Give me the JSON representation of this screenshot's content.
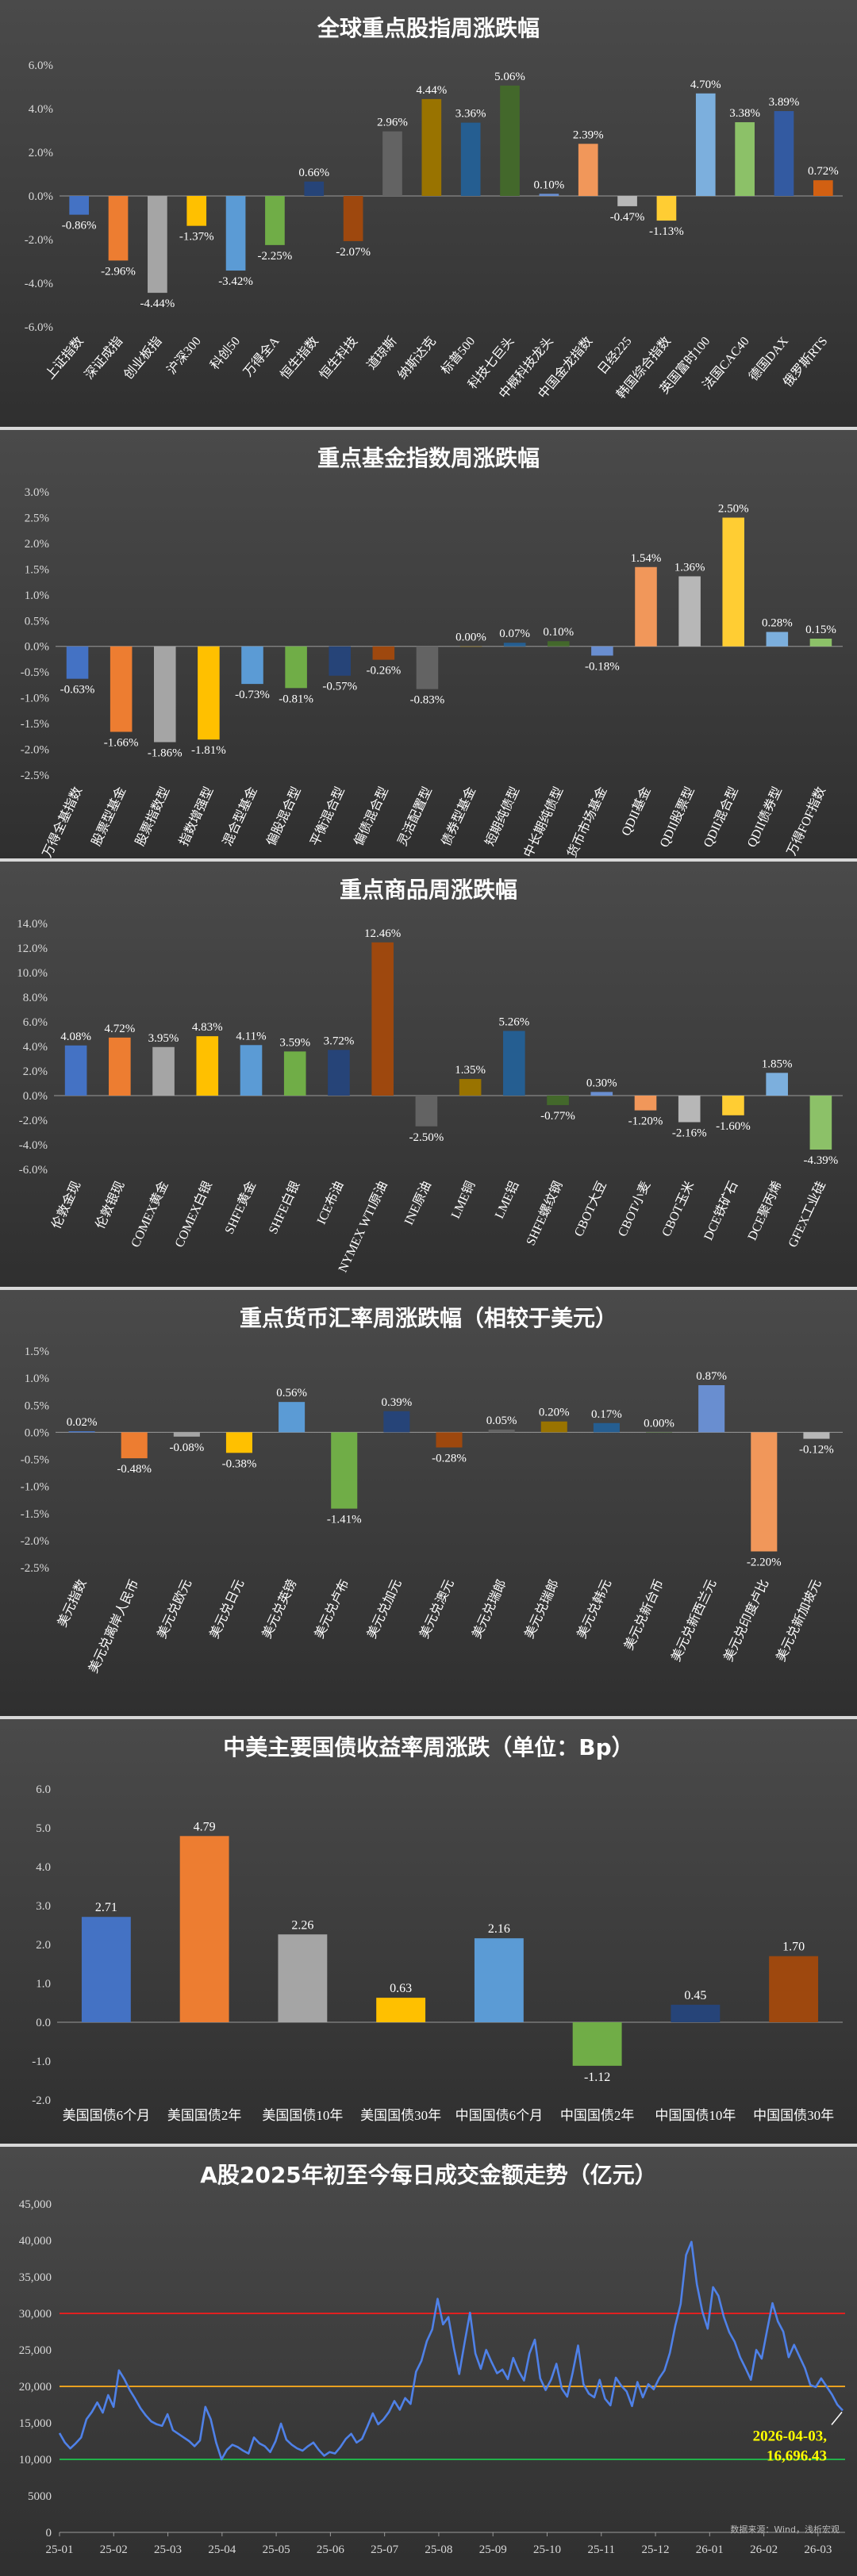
{
  "chart_data": [
    {
      "type": "bar",
      "title": "全球重点股指周涨跌幅",
      "categories": [
        "上证指数",
        "深证成指",
        "创业板指",
        "沪深300",
        "科创50",
        "万得全A",
        "恒生指数",
        "恒生科技",
        "道琼斯",
        "纳斯达克",
        "标普500",
        "科技七巨头",
        "中概科技龙头",
        "中国金龙指数",
        "日经225",
        "韩国综合指数",
        "英国富时100",
        "法国CAC40",
        "德国DAX",
        "俄罗斯RTS"
      ],
      "values": [
        -0.86,
        -2.96,
        -4.44,
        -1.37,
        -3.42,
        -2.25,
        0.66,
        -2.07,
        2.96,
        4.44,
        3.36,
        5.06,
        0.1,
        2.39,
        -0.47,
        -1.13,
        4.7,
        3.38,
        3.89,
        0.72
      ],
      "labels": [
        "-0.86%",
        "-2.96%",
        "-4.44%",
        "-1.37%",
        "-3.42%",
        "-2.25%",
        "0.66%",
        "-2.07%",
        "2.96%",
        "4.44%",
        "3.36%",
        "5.06%",
        "0.10%",
        "2.39%",
        "-0.47%",
        "-1.13%",
        "4.70%",
        "3.38%",
        "3.89%",
        "0.72%"
      ],
      "colors": [
        "#4472C4",
        "#ED7D31",
        "#A5A5A5",
        "#FFC000",
        "#5B9BD5",
        "#70AD47",
        "#264478",
        "#9E480E",
        "#636363",
        "#997300",
        "#255E91",
        "#43682B",
        "#698ED0",
        "#F1975A",
        "#B7B7B7",
        "#FFCD33",
        "#7CAFDD",
        "#8CC168",
        "#335AA1",
        "#D26012"
      ],
      "yticks": [
        "6.0%",
        "4.0%",
        "2.0%",
        "0.0%",
        "-2.0%",
        "-4.0%",
        "-6.0%"
      ],
      "ylim": [
        -6,
        6
      ]
    },
    {
      "type": "bar",
      "title": "重点基金指数周涨跌幅",
      "categories": [
        "万得全基指数",
        "股票型基金",
        "股票指数型",
        "指数增强型",
        "混合型基金",
        "偏股混合型",
        "平衡混合型",
        "偏债混合型",
        "灵活配置型",
        "债券型基金",
        "短期纯债型",
        "中长期纯债型",
        "货币市场基金",
        "QDII基金",
        "QDII股票型",
        "QDII混合型",
        "QDII债券型",
        "万得FOF指数"
      ],
      "values": [
        -0.63,
        -1.66,
        -1.86,
        -1.81,
        -0.73,
        -0.81,
        -0.57,
        -0.26,
        -0.83,
        0.0,
        0.07,
        0.1,
        -0.18,
        1.54,
        1.36,
        2.5,
        0.28,
        0.15
      ],
      "labels": [
        "-0.63%",
        "-1.66%",
        "-1.86%",
        "-1.81%",
        "-0.73%",
        "-0.81%",
        "-0.57%",
        "-0.26%",
        "-0.83%",
        "0.00%",
        "0.07%",
        "0.10%",
        "-0.18%",
        "1.54%",
        "1.36%",
        "2.50%",
        "0.28%",
        "0.15%"
      ],
      "colors": [
        "#4472C4",
        "#ED7D31",
        "#A5A5A5",
        "#FFC000",
        "#5B9BD5",
        "#70AD47",
        "#264478",
        "#9E480E",
        "#636363",
        "#997300",
        "#255E91",
        "#43682B",
        "#698ED0",
        "#F1975A",
        "#B7B7B7",
        "#FFCD33",
        "#7CAFDD",
        "#8CC168"
      ],
      "yticks": [
        "3.0%",
        "2.5%",
        "2.0%",
        "1.5%",
        "1.0%",
        "0.5%",
        "0.0%",
        "-0.5%",
        "-1.0%",
        "-1.5%",
        "-2.0%",
        "-2.5%"
      ],
      "ylim": [
        -2.5,
        3.0
      ]
    },
    {
      "type": "bar",
      "title": "重点商品周涨跌幅",
      "categories": [
        "伦敦金现",
        "伦敦银现",
        "COMEX黄金",
        "COMEX白银",
        "SHFE黄金",
        "SHFE白银",
        "ICE布油",
        "NYMEX WTI原油",
        "INE原油",
        "LME铜",
        "LME铝",
        "SHFE螺纹钢",
        "CBOT大豆",
        "CBOT小麦",
        "CBOT玉米",
        "DCE铁矿石",
        "DCE聚丙烯",
        "GFEX工业硅"
      ],
      "values": [
        4.08,
        4.72,
        3.95,
        4.83,
        4.11,
        3.59,
        3.72,
        12.46,
        -2.5,
        1.35,
        5.26,
        -0.77,
        0.3,
        -1.2,
        -2.16,
        -1.6,
        1.85,
        -4.39
      ],
      "labels": [
        "4.08%",
        "4.72%",
        "3.95%",
        "4.83%",
        "4.11%",
        "3.59%",
        "3.72%",
        "12.46%",
        "-2.50%",
        "1.35%",
        "5.26%",
        "-0.77%",
        "0.30%",
        "-1.20%",
        "-2.16%",
        "-1.60%",
        "1.85%",
        "-4.39%"
      ],
      "colors": [
        "#4472C4",
        "#ED7D31",
        "#A5A5A5",
        "#FFC000",
        "#5B9BD5",
        "#70AD47",
        "#264478",
        "#9E480E",
        "#636363",
        "#997300",
        "#255E91",
        "#43682B",
        "#698ED0",
        "#F1975A",
        "#B7B7B7",
        "#FFCD33",
        "#7CAFDD",
        "#8CC168"
      ],
      "yticks": [
        "14.0%",
        "12.0%",
        "10.0%",
        "8.0%",
        "6.0%",
        "4.0%",
        "2.0%",
        "0.0%",
        "-2.0%",
        "-4.0%",
        "-6.0%"
      ],
      "ylim": [
        -6,
        14
      ]
    },
    {
      "type": "bar",
      "title": "重点货币汇率周涨跌幅（相较于美元）",
      "categories": [
        "美元指数",
        "美元兑离岸人民币",
        "美元兑欧元",
        "美元兑日元",
        "美元兑英镑",
        "美元兑卢布",
        "美元兑加元",
        "美元兑澳元",
        "美元兑瑞郎",
        "美元兑瑞郎",
        "美元兑韩元",
        "美元兑新台币",
        "美元兑新西兰元",
        "美元兑印度卢比",
        "美元兑新加坡元"
      ],
      "values": [
        0.02,
        -0.48,
        -0.08,
        -0.38,
        0.56,
        -1.41,
        0.39,
        -0.28,
        0.05,
        0.2,
        0.17,
        0.0,
        0.87,
        -2.2,
        -0.12
      ],
      "labels": [
        "0.02%",
        "-0.48%",
        "-0.08%",
        "-0.38%",
        "0.56%",
        "-1.41%",
        "0.39%",
        "-0.28%",
        "0.05%",
        "0.20%",
        "0.17%",
        "0.00%",
        "0.87%",
        "-2.20%",
        "-0.12%"
      ],
      "colors": [
        "#4472C4",
        "#ED7D31",
        "#A5A5A5",
        "#FFC000",
        "#5B9BD5",
        "#70AD47",
        "#264478",
        "#9E480E",
        "#636363",
        "#997300",
        "#255E91",
        "#43682B",
        "#698ED0",
        "#F1975A",
        "#B7B7B7"
      ],
      "yticks": [
        "1.5%",
        "1.0%",
        "0.5%",
        "0.0%",
        "-0.5%",
        "-1.0%",
        "-1.5%",
        "-2.0%",
        "-2.5%"
      ],
      "ylim": [
        -2.5,
        1.5
      ]
    },
    {
      "type": "bar",
      "title": "中美主要国债收益率周涨跌（单位：Bp）",
      "categories": [
        "美国国债6个月",
        "美国国债2年",
        "美国国债10年",
        "美国国债30年",
        "中国国债6个月",
        "中国国债2年",
        "中国国债10年",
        "中国国债30年"
      ],
      "values": [
        2.71,
        4.79,
        2.26,
        0.63,
        2.16,
        -1.12,
        0.45,
        1.7
      ],
      "labels": [
        "2.71",
        "4.79",
        "2.26",
        "0.63",
        "2.16",
        "-1.12",
        "0.45",
        "1.70"
      ],
      "colors": [
        "#4472C4",
        "#ED7D31",
        "#A5A5A5",
        "#FFC000",
        "#5B9BD5",
        "#70AD47",
        "#264478",
        "#9E480E"
      ],
      "yticks": [
        "6.0",
        "5.0",
        "4.0",
        "3.0",
        "2.0",
        "1.0",
        "0.0",
        "-1.0",
        "-2.0"
      ],
      "ylim": [
        -2,
        6
      ]
    },
    {
      "type": "line",
      "title": "A股2025年初至今每日成交金额走势（亿元）",
      "xticks": [
        "25-01",
        "25-02",
        "25-03",
        "25-04",
        "25-05",
        "25-06",
        "25-07",
        "25-08",
        "25-09",
        "25-10",
        "25-11",
        "25-12",
        "26-01",
        "26-02",
        "26-03"
      ],
      "yticks": [
        "45,000",
        "40,000",
        "35,000",
        "30,000",
        "25,000",
        "20,000",
        "15,000",
        "10,000",
        "5000",
        "0"
      ],
      "ylim": [
        0,
        45000
      ],
      "reference_lines": [
        {
          "value": 30000,
          "color": "#E02020"
        },
        {
          "value": 20000,
          "color": "#E8A020"
        },
        {
          "value": 10000,
          "color": "#22B04A"
        }
      ],
      "series": [
        {
          "values": [
            13600,
            12300,
            11500,
            12200,
            13000,
            15500,
            16500,
            17800,
            16400,
            18800,
            17200,
            22200,
            21000,
            19500,
            18300,
            17000,
            16000,
            15200,
            14800,
            14600,
            16200,
            14000,
            13500,
            13000,
            12500,
            11800,
            12600,
            17200,
            15500,
            12300,
            10000,
            11300,
            12000,
            11700,
            11200,
            10800,
            13000,
            12200,
            11800,
            11000,
            12500,
            14900,
            12700,
            12000,
            11500,
            11200,
            11800,
            12300,
            11300,
            10500,
            11000,
            10800,
            11700,
            12800,
            13500,
            12300,
            12800,
            14500,
            16300,
            14800,
            15500,
            16500,
            18000,
            16800,
            18400,
            17600,
            22000,
            23500,
            26200,
            27800,
            32000,
            28500,
            29500,
            25300,
            21700,
            26000,
            30100,
            24500,
            22400,
            25000,
            23300,
            21800,
            22300,
            21000,
            23900,
            22100,
            20800,
            24500,
            26400,
            21100,
            19500,
            20900,
            23100,
            19700,
            18600,
            21900,
            25600,
            20300,
            19000,
            18500,
            20900,
            18300,
            17400,
            21200,
            20100,
            19300,
            17300,
            20600,
            18500,
            20300,
            19600,
            21100,
            22200,
            24600,
            28300,
            31300,
            38000,
            39800,
            34000,
            30300,
            27900,
            33600,
            32400,
            29500,
            27400,
            26100,
            24000,
            22500,
            20900,
            25000,
            23800,
            27700,
            31400,
            28900,
            27500,
            24000,
            25700,
            24100,
            22500,
            20200,
            19900,
            21100,
            20000,
            18900,
            17500,
            16696
          ]
        }
      ],
      "annotation": {
        "line1": "2026-04-03,",
        "line2": "16,696.43"
      }
    }
  ],
  "source_note": "数据来源：Wind，浅析宏观"
}
